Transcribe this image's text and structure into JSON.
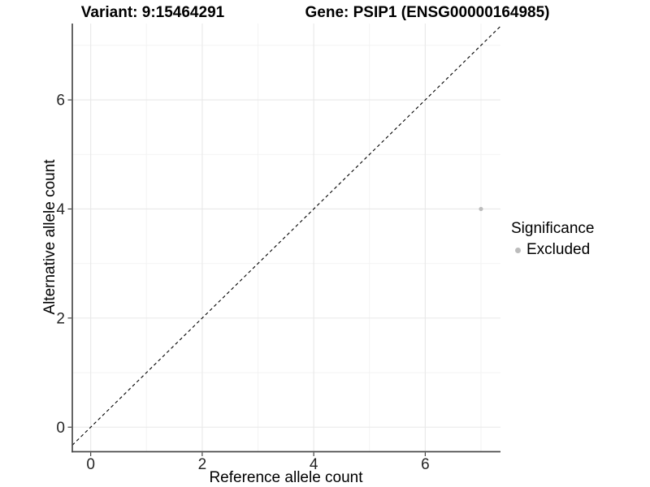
{
  "chart_data": {
    "type": "scatter",
    "title_left": "Variant: 9:15464291",
    "title_right": "Gene: PSIP1 (ENSG00000164985)",
    "xlabel": "Reference allele count",
    "ylabel": "Alternative allele count",
    "xlim": [
      -0.33,
      7.35
    ],
    "ylim": [
      -0.45,
      7.4
    ],
    "x_major_ticks": [
      0,
      2,
      4,
      6
    ],
    "x_minor_ticks": [
      1,
      3,
      5,
      7
    ],
    "y_major_ticks": [
      0,
      2,
      4,
      6
    ],
    "y_minor_ticks": [
      1,
      3,
      5,
      7
    ],
    "grid": true,
    "identity_line": {
      "type": "dashed",
      "slope": 1,
      "intercept": 0,
      "color": "#000000"
    },
    "series": [
      {
        "name": "Excluded",
        "color": "#bcbcbc",
        "points": [
          {
            "x": 7,
            "y": 4
          }
        ]
      }
    ],
    "legend": {
      "title": "Significance",
      "position": "right",
      "items": [
        {
          "label": "Excluded",
          "color": "#bcbcbc"
        }
      ]
    },
    "colors": {
      "background": "#ffffff",
      "grid_major": "#e8e8e8",
      "grid_minor": "#f2f2f2",
      "axis_line": "#4a4a4a",
      "tick_label": "#262626"
    }
  }
}
